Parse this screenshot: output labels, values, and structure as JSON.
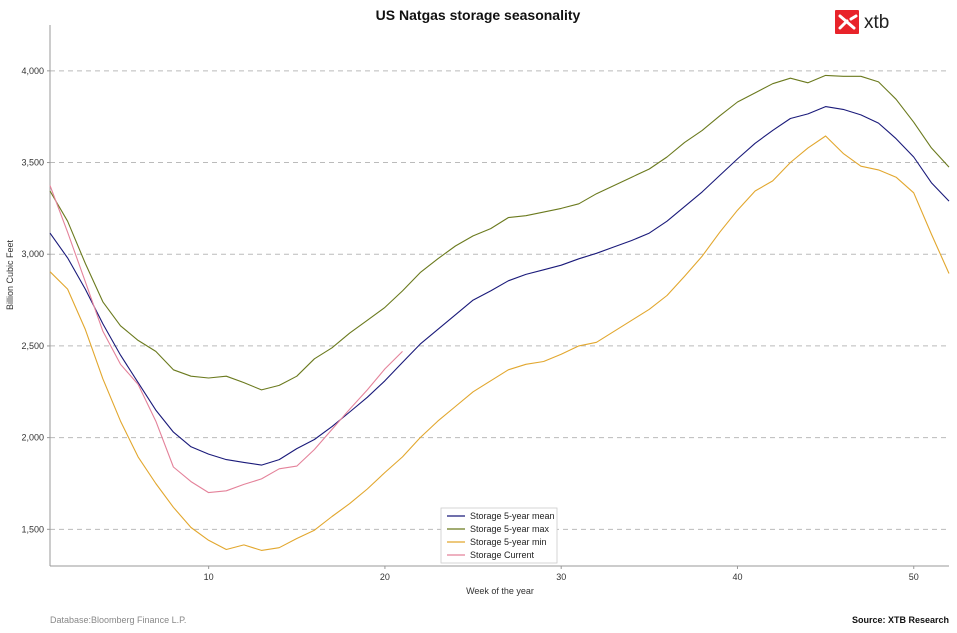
{
  "logo": {
    "text": "xtb",
    "color": "#e8232a"
  },
  "footer": {
    "database": "Database:Bloomberg Finance L.P.",
    "source": "Source: XTB Research"
  },
  "chart_data": {
    "type": "line",
    "title": "US Natgas storage seasonality",
    "xlabel": "Week of the year",
    "ylabel": "Billion Cubic Feet",
    "xlim": [
      1,
      52
    ],
    "ylim": [
      1300,
      4250
    ],
    "x_ticks": [
      10,
      20,
      30,
      40,
      50
    ],
    "x_tick_labels": [
      "10",
      "20",
      "30",
      "40",
      "50"
    ],
    "y_ticks": [
      1500,
      2000,
      2500,
      3000,
      3500,
      4000
    ],
    "y_tick_labels": [
      "1,500",
      "2,000",
      "2,500",
      "3,000",
      "3,500",
      "4,000"
    ],
    "grid": "horizontal dashed",
    "legend_position": "bottom-center",
    "series": [
      {
        "name": "Storage 5-year mean",
        "color": "#1a1a7a",
        "x": [
          1,
          2,
          3,
          4,
          5,
          6,
          7,
          8,
          9,
          10,
          11,
          12,
          13,
          14,
          15,
          16,
          17,
          18,
          19,
          20,
          21,
          22,
          23,
          24,
          25,
          26,
          27,
          28,
          29,
          30,
          31,
          32,
          33,
          34,
          35,
          36,
          37,
          38,
          39,
          40,
          41,
          42,
          43,
          44,
          45,
          46,
          47,
          48,
          49,
          50,
          51,
          52
        ],
        "y": [
          3115,
          2980,
          2810,
          2620,
          2450,
          2300,
          2150,
          2030,
          1950,
          1910,
          1880,
          1865,
          1850,
          1880,
          1940,
          1990,
          2060,
          2140,
          2220,
          2310,
          2410,
          2510,
          2590,
          2670,
          2750,
          2800,
          2855,
          2890,
          2915,
          2940,
          2975,
          3005,
          3040,
          3075,
          3115,
          3180,
          3260,
          3340,
          3430,
          3520,
          3605,
          3675,
          3740,
          3765,
          3805,
          3790,
          3760,
          3715,
          3630,
          3530,
          3390,
          3290
        ]
      },
      {
        "name": "Storage 5-year max",
        "color": "#6b7a1e",
        "x": [
          1,
          2,
          3,
          4,
          5,
          6,
          7,
          8,
          9,
          10,
          11,
          12,
          13,
          14,
          15,
          16,
          17,
          18,
          19,
          20,
          21,
          22,
          23,
          24,
          25,
          26,
          27,
          28,
          29,
          30,
          31,
          32,
          33,
          34,
          35,
          36,
          37,
          38,
          39,
          40,
          41,
          42,
          43,
          44,
          45,
          46,
          47,
          48,
          49,
          50,
          51,
          52
        ],
        "y": [
          3345,
          3180,
          2950,
          2740,
          2610,
          2530,
          2470,
          2370,
          2335,
          2325,
          2335,
          2300,
          2260,
          2285,
          2335,
          2430,
          2490,
          2570,
          2640,
          2710,
          2800,
          2900,
          2975,
          3045,
          3100,
          3140,
          3200,
          3210,
          3230,
          3250,
          3275,
          3330,
          3375,
          3420,
          3465,
          3530,
          3610,
          3675,
          3755,
          3830,
          3880,
          3930,
          3960,
          3935,
          3975,
          3970,
          3970,
          3940,
          3845,
          3720,
          3580,
          3475
        ]
      },
      {
        "name": "Storage 5-year min",
        "color": "#e2a72e",
        "x": [
          1,
          2,
          3,
          4,
          5,
          6,
          7,
          8,
          9,
          10,
          11,
          12,
          13,
          14,
          15,
          16,
          17,
          18,
          19,
          20,
          21,
          22,
          23,
          24,
          25,
          26,
          27,
          28,
          29,
          30,
          31,
          32,
          33,
          34,
          35,
          36,
          37,
          38,
          39,
          40,
          41,
          42,
          43,
          44,
          45,
          46,
          47,
          48,
          49,
          50,
          51,
          52
        ],
        "y": [
          2905,
          2810,
          2590,
          2320,
          2090,
          1895,
          1750,
          1620,
          1510,
          1440,
          1390,
          1415,
          1385,
          1400,
          1450,
          1495,
          1570,
          1640,
          1720,
          1810,
          1895,
          2000,
          2090,
          2170,
          2250,
          2310,
          2370,
          2400,
          2415,
          2455,
          2500,
          2520,
          2580,
          2640,
          2700,
          2775,
          2880,
          2990,
          3120,
          3240,
          3345,
          3400,
          3500,
          3580,
          3645,
          3550,
          3480,
          3460,
          3420,
          3335,
          3110,
          2895
        ]
      },
      {
        "name": "Storage Current",
        "color": "#e4829a",
        "x": [
          1,
          2,
          3,
          4,
          5,
          6,
          7,
          8,
          9,
          10,
          11,
          12,
          13,
          14,
          15,
          16,
          17,
          18,
          19,
          20,
          21
        ],
        "y": [
          3375,
          3120,
          2850,
          2580,
          2400,
          2290,
          2090,
          1840,
          1760,
          1700,
          1710,
          1745,
          1775,
          1830,
          1845,
          1935,
          2045,
          2155,
          2260,
          2375,
          2470
        ]
      }
    ]
  }
}
